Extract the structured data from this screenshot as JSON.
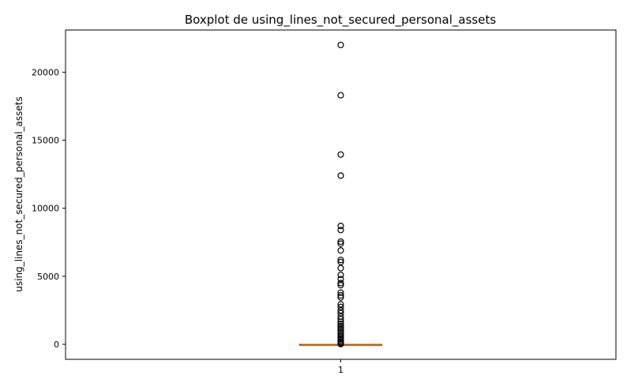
{
  "chart_data": {
    "type": "boxplot",
    "title": "Boxplot de using_lines_not_secured_personal_assets",
    "xlabel": "",
    "ylabel": "using_lines_not_secured_personal_assets",
    "categories": [
      "1"
    ],
    "ylim": [
      -1100,
      23100
    ],
    "yticks": [
      0,
      5000,
      10000,
      15000,
      20000
    ],
    "ytick_labels": [
      "0",
      "5000",
      "10000",
      "15000",
      "20000"
    ],
    "grid": false,
    "box": {
      "q1": 0.03,
      "median": 0.15,
      "q3": 0.56,
      "whisker_low": 0,
      "whisker_high": 1.35
    },
    "outliers": [
      22000,
      18300,
      13950,
      12400,
      8700,
      8400,
      7550,
      7400,
      6900,
      6200,
      6050,
      5600,
      5100,
      4800,
      4500,
      4350,
      3800,
      3600,
      3450,
      2950,
      2750,
      2500,
      2300,
      2050,
      1850,
      1650,
      1500,
      1350,
      1200,
      1050,
      900,
      750,
      600,
      500,
      400,
      300,
      200,
      120,
      60,
      20
    ],
    "colors": {
      "median": "#ff7f0e",
      "outlier_edge": "#000000",
      "box": "#000000"
    }
  }
}
